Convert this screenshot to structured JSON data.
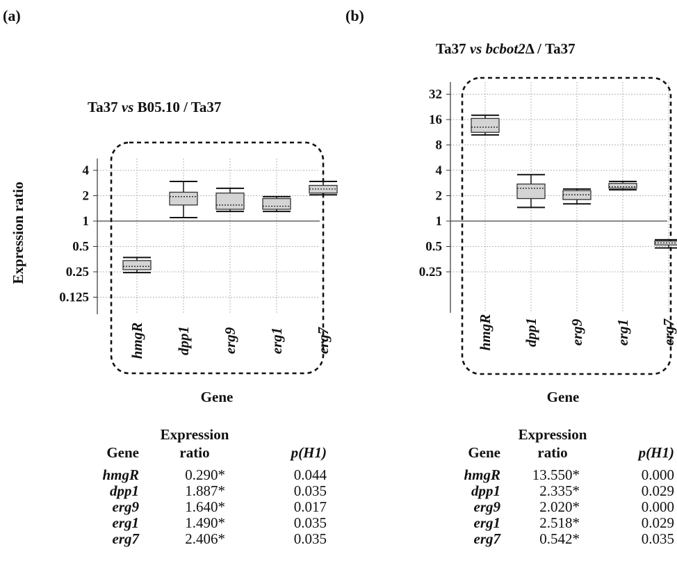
{
  "figure": {
    "panel_a_label": "(a)",
    "panel_b_label": "(b)"
  },
  "chart_data": [
    {
      "type": "box",
      "title_parts": {
        "pre": "Ta37 ",
        "italic": "vs",
        "post": " B05.10 / Ta37"
      },
      "xlabel": "Gene",
      "ylabel": "Expression ratio",
      "yscale": "log2",
      "ylim": [
        0.1,
        5.5
      ],
      "yticks": [
        "4",
        "2",
        "1",
        "0.5",
        "0.25",
        "0.125"
      ],
      "ytick_values": [
        4,
        2,
        1,
        0.5,
        0.25,
        0.125
      ],
      "reference_line": 1,
      "categories": [
        "hmgR",
        "dpp1",
        "erg9",
        "erg1",
        "erg7"
      ],
      "boxes": [
        {
          "gene": "hmgR",
          "whisker_low": 0.245,
          "q1": 0.265,
          "median": 0.29,
          "q3": 0.34,
          "whisker_high": 0.37
        },
        {
          "gene": "dpp1",
          "whisker_low": 1.1,
          "q1": 1.55,
          "median": 1.95,
          "q3": 2.2,
          "whisker_high": 2.95
        },
        {
          "gene": "erg9",
          "whisker_low": 1.3,
          "q1": 1.38,
          "median": 1.55,
          "q3": 2.15,
          "whisker_high": 2.45
        },
        {
          "gene": "erg1",
          "whisker_low": 1.3,
          "q1": 1.38,
          "median": 1.5,
          "q3": 1.85,
          "whisker_high": 1.95
        },
        {
          "gene": "erg7",
          "whisker_low": 2.05,
          "q1": 2.15,
          "median": 2.4,
          "q3": 2.65,
          "whisker_high": 2.95
        }
      ],
      "grid": true,
      "table": {
        "headers": [
          "Gene",
          "Expression ratio",
          "p(H1)"
        ],
        "header_ratio_line1": "Expression",
        "header_ratio_line2": "ratio",
        "rows": [
          {
            "gene": "hmgR",
            "ratio": "0.290*",
            "p": "0.044"
          },
          {
            "gene": "dpp1",
            "ratio": "1.887*",
            "p": "0.035"
          },
          {
            "gene": "erg9",
            "ratio": "1.640*",
            "p": "0.017"
          },
          {
            "gene": "erg1",
            "ratio": "1.490*",
            "p": "0.035"
          },
          {
            "gene": "erg7",
            "ratio": "2.406*",
            "p": "0.035"
          }
        ]
      }
    },
    {
      "type": "box",
      "title_parts": {
        "pre": "Ta37 ",
        "italic": "vs bcbot2",
        "post": "Δ / Ta37"
      },
      "xlabel": "Gene",
      "ylabel": "",
      "yscale": "log2",
      "ylim": [
        0.1,
        40
      ],
      "yticks": [
        "32",
        "16",
        "8",
        "4",
        "2",
        "1",
        "0.5",
        "0.25"
      ],
      "ytick_values": [
        32,
        16,
        8,
        4,
        2,
        1,
        0.5,
        0.25
      ],
      "reference_line": 1,
      "categories": [
        "hmgR",
        "dpp1",
        "erg9",
        "erg1",
        "erg7"
      ],
      "boxes": [
        {
          "gene": "hmgR",
          "whisker_low": 10.5,
          "q1": 11.3,
          "median": 13.0,
          "q3": 16.5,
          "whisker_high": 18.0
        },
        {
          "gene": "dpp1",
          "whisker_low": 1.45,
          "q1": 1.85,
          "median": 2.45,
          "q3": 2.75,
          "whisker_high": 3.55
        },
        {
          "gene": "erg9",
          "whisker_low": 1.6,
          "q1": 1.8,
          "median": 2.05,
          "q3": 2.3,
          "whisker_high": 2.4
        },
        {
          "gene": "erg1",
          "whisker_low": 2.35,
          "q1": 2.45,
          "median": 2.55,
          "q3": 2.8,
          "whisker_high": 2.95
        },
        {
          "gene": "erg7",
          "whisker_low": 0.48,
          "q1": 0.52,
          "median": 0.55,
          "q3": 0.58,
          "whisker_high": 0.6
        }
      ],
      "grid": true,
      "table": {
        "headers": [
          "Gene",
          "Expression ratio",
          "p(H1)"
        ],
        "header_ratio_line1": "Expression",
        "header_ratio_line2": "ratio",
        "rows": [
          {
            "gene": "hmgR",
            "ratio": "13.550*",
            "p": "0.000"
          },
          {
            "gene": "dpp1",
            "ratio": "2.335*",
            "p": "0.029"
          },
          {
            "gene": "erg9",
            "ratio": "2.020*",
            "p": "0.000"
          },
          {
            "gene": "erg1",
            "ratio": "2.518*",
            "p": "0.029"
          },
          {
            "gene": "erg7",
            "ratio": "0.542*",
            "p": "0.035"
          }
        ]
      }
    }
  ]
}
